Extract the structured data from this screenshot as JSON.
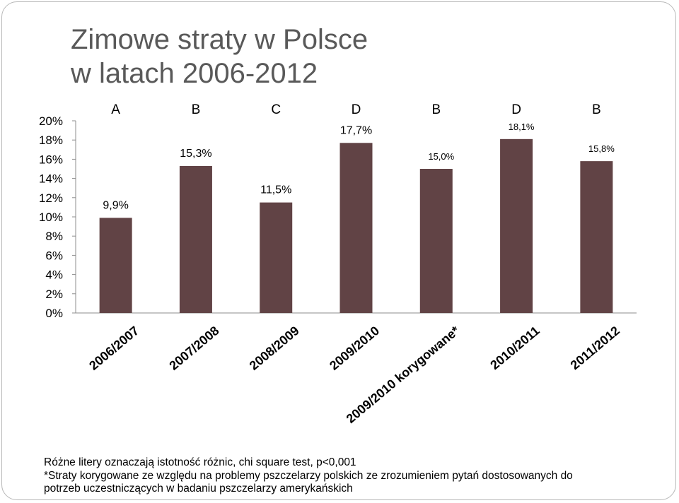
{
  "title": {
    "line1": "Zimowe straty w Polsce",
    "line2": "w latach 2006-2012"
  },
  "chart_data": {
    "type": "bar",
    "categories": [
      "2006/2007",
      "2007/2008",
      "2008/2009",
      "2009/2010",
      "2009/2010 korygowane*",
      "2010/2011",
      "2011/2012"
    ],
    "values": [
      9.9,
      15.3,
      11.5,
      17.7,
      15.0,
      18.1,
      15.8
    ],
    "data_labels": [
      "9,9%",
      "15,3%",
      "11,5%",
      "17,7%",
      "15,0%",
      "18,1%",
      "15,8%"
    ],
    "group_letters": [
      "A",
      "B",
      "C",
      "D",
      "B",
      "D",
      "B"
    ],
    "y_ticks": [
      "0%",
      "2%",
      "4%",
      "6%",
      "8%",
      "10%",
      "12%",
      "14%",
      "16%",
      "18%",
      "20%"
    ],
    "ylim": [
      0,
      20
    ],
    "bar_color": "#614345",
    "grid": false
  },
  "notes": [
    "Różne litery oznaczają istotność różnic, chi square test, p<0,001",
    "*Straty korygowane ze względu na problemy pszczelarzy polskich ze zrozumieniem pytań dostosowanych do",
    "potrzeb uczestniczących w badaniu pszczelarzy amerykańskich"
  ]
}
